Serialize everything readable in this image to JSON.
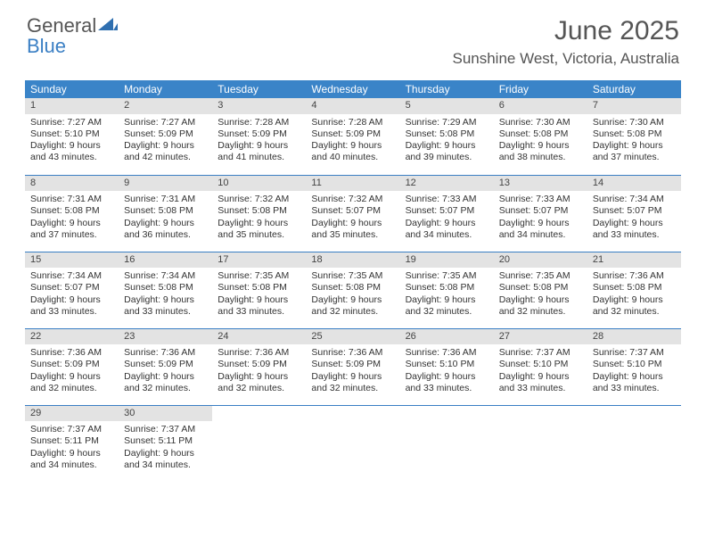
{
  "brand": {
    "part1": "General",
    "part2": "Blue",
    "sail_color": "#2f6fb0"
  },
  "title": "June 2025",
  "location": "Sunshine West, Victoria, Australia",
  "colors": {
    "header_bg": "#3a84c8",
    "header_text": "#ffffff",
    "daynum_bg": "#e3e3e3",
    "rule": "#3a7fc4",
    "body_text": "#333333",
    "title_text": "#555555"
  },
  "dow": [
    "Sunday",
    "Monday",
    "Tuesday",
    "Wednesday",
    "Thursday",
    "Friday",
    "Saturday"
  ],
  "weeks": [
    [
      {
        "n": "1",
        "sunrise": "Sunrise: 7:27 AM",
        "sunset": "Sunset: 5:10 PM",
        "daylight": "Daylight: 9 hours and 43 minutes."
      },
      {
        "n": "2",
        "sunrise": "Sunrise: 7:27 AM",
        "sunset": "Sunset: 5:09 PM",
        "daylight": "Daylight: 9 hours and 42 minutes."
      },
      {
        "n": "3",
        "sunrise": "Sunrise: 7:28 AM",
        "sunset": "Sunset: 5:09 PM",
        "daylight": "Daylight: 9 hours and 41 minutes."
      },
      {
        "n": "4",
        "sunrise": "Sunrise: 7:28 AM",
        "sunset": "Sunset: 5:09 PM",
        "daylight": "Daylight: 9 hours and 40 minutes."
      },
      {
        "n": "5",
        "sunrise": "Sunrise: 7:29 AM",
        "sunset": "Sunset: 5:08 PM",
        "daylight": "Daylight: 9 hours and 39 minutes."
      },
      {
        "n": "6",
        "sunrise": "Sunrise: 7:30 AM",
        "sunset": "Sunset: 5:08 PM",
        "daylight": "Daylight: 9 hours and 38 minutes."
      },
      {
        "n": "7",
        "sunrise": "Sunrise: 7:30 AM",
        "sunset": "Sunset: 5:08 PM",
        "daylight": "Daylight: 9 hours and 37 minutes."
      }
    ],
    [
      {
        "n": "8",
        "sunrise": "Sunrise: 7:31 AM",
        "sunset": "Sunset: 5:08 PM",
        "daylight": "Daylight: 9 hours and 37 minutes."
      },
      {
        "n": "9",
        "sunrise": "Sunrise: 7:31 AM",
        "sunset": "Sunset: 5:08 PM",
        "daylight": "Daylight: 9 hours and 36 minutes."
      },
      {
        "n": "10",
        "sunrise": "Sunrise: 7:32 AM",
        "sunset": "Sunset: 5:08 PM",
        "daylight": "Daylight: 9 hours and 35 minutes."
      },
      {
        "n": "11",
        "sunrise": "Sunrise: 7:32 AM",
        "sunset": "Sunset: 5:07 PM",
        "daylight": "Daylight: 9 hours and 35 minutes."
      },
      {
        "n": "12",
        "sunrise": "Sunrise: 7:33 AM",
        "sunset": "Sunset: 5:07 PM",
        "daylight": "Daylight: 9 hours and 34 minutes."
      },
      {
        "n": "13",
        "sunrise": "Sunrise: 7:33 AM",
        "sunset": "Sunset: 5:07 PM",
        "daylight": "Daylight: 9 hours and 34 minutes."
      },
      {
        "n": "14",
        "sunrise": "Sunrise: 7:34 AM",
        "sunset": "Sunset: 5:07 PM",
        "daylight": "Daylight: 9 hours and 33 minutes."
      }
    ],
    [
      {
        "n": "15",
        "sunrise": "Sunrise: 7:34 AM",
        "sunset": "Sunset: 5:07 PM",
        "daylight": "Daylight: 9 hours and 33 minutes."
      },
      {
        "n": "16",
        "sunrise": "Sunrise: 7:34 AM",
        "sunset": "Sunset: 5:08 PM",
        "daylight": "Daylight: 9 hours and 33 minutes."
      },
      {
        "n": "17",
        "sunrise": "Sunrise: 7:35 AM",
        "sunset": "Sunset: 5:08 PM",
        "daylight": "Daylight: 9 hours and 33 minutes."
      },
      {
        "n": "18",
        "sunrise": "Sunrise: 7:35 AM",
        "sunset": "Sunset: 5:08 PM",
        "daylight": "Daylight: 9 hours and 32 minutes."
      },
      {
        "n": "19",
        "sunrise": "Sunrise: 7:35 AM",
        "sunset": "Sunset: 5:08 PM",
        "daylight": "Daylight: 9 hours and 32 minutes."
      },
      {
        "n": "20",
        "sunrise": "Sunrise: 7:35 AM",
        "sunset": "Sunset: 5:08 PM",
        "daylight": "Daylight: 9 hours and 32 minutes."
      },
      {
        "n": "21",
        "sunrise": "Sunrise: 7:36 AM",
        "sunset": "Sunset: 5:08 PM",
        "daylight": "Daylight: 9 hours and 32 minutes."
      }
    ],
    [
      {
        "n": "22",
        "sunrise": "Sunrise: 7:36 AM",
        "sunset": "Sunset: 5:09 PM",
        "daylight": "Daylight: 9 hours and 32 minutes."
      },
      {
        "n": "23",
        "sunrise": "Sunrise: 7:36 AM",
        "sunset": "Sunset: 5:09 PM",
        "daylight": "Daylight: 9 hours and 32 minutes."
      },
      {
        "n": "24",
        "sunrise": "Sunrise: 7:36 AM",
        "sunset": "Sunset: 5:09 PM",
        "daylight": "Daylight: 9 hours and 32 minutes."
      },
      {
        "n": "25",
        "sunrise": "Sunrise: 7:36 AM",
        "sunset": "Sunset: 5:09 PM",
        "daylight": "Daylight: 9 hours and 32 minutes."
      },
      {
        "n": "26",
        "sunrise": "Sunrise: 7:36 AM",
        "sunset": "Sunset: 5:10 PM",
        "daylight": "Daylight: 9 hours and 33 minutes."
      },
      {
        "n": "27",
        "sunrise": "Sunrise: 7:37 AM",
        "sunset": "Sunset: 5:10 PM",
        "daylight": "Daylight: 9 hours and 33 minutes."
      },
      {
        "n": "28",
        "sunrise": "Sunrise: 7:37 AM",
        "sunset": "Sunset: 5:10 PM",
        "daylight": "Daylight: 9 hours and 33 minutes."
      }
    ],
    [
      {
        "n": "29",
        "sunrise": "Sunrise: 7:37 AM",
        "sunset": "Sunset: 5:11 PM",
        "daylight": "Daylight: 9 hours and 34 minutes."
      },
      {
        "n": "30",
        "sunrise": "Sunrise: 7:37 AM",
        "sunset": "Sunset: 5:11 PM",
        "daylight": "Daylight: 9 hours and 34 minutes."
      },
      null,
      null,
      null,
      null,
      null
    ]
  ]
}
